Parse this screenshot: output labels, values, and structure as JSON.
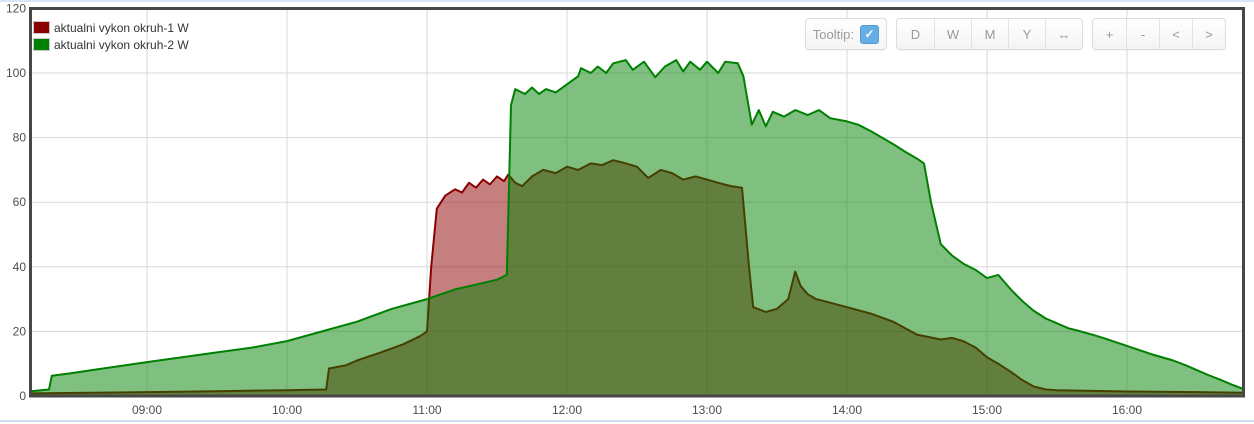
{
  "colors": {
    "series1": "#8b0000",
    "series1_fill": "rgba(139,0,0,0.5)",
    "series2": "#008000",
    "series2_fill": "rgba(0,128,0,0.5)",
    "grid": "#dadada",
    "axis_border": "#474747",
    "tick_text": "#4d4d4d",
    "checkbox_blue": "#64aee4"
  },
  "legend": {
    "items": [
      {
        "label": "aktualni vykon okruh-1 W",
        "color": "#8b0000"
      },
      {
        "label": "aktualni vykon okruh-2 W",
        "color": "#008000"
      }
    ]
  },
  "toolbar": {
    "tooltip_label": "Tooltip:",
    "tooltip_checked": true,
    "checkmark_glyph": "✓",
    "range_buttons": [
      "D",
      "W",
      "M",
      "Y",
      "↔"
    ],
    "zoom_buttons": [
      "+",
      "-",
      "<",
      ">"
    ]
  },
  "chart_data": {
    "type": "area",
    "title": "",
    "xlabel": "",
    "ylabel": "",
    "grid": true,
    "legend_position": "top-left",
    "x_axis": {
      "unit": "time",
      "start_hour": 8.17,
      "end_hour": 16.83,
      "tick_hours": [
        9,
        10,
        11,
        12,
        13,
        14,
        15,
        16
      ],
      "tick_labels": [
        "09:00",
        "10:00",
        "11:00",
        "12:00",
        "13:00",
        "14:00",
        "15:00",
        "16:00"
      ]
    },
    "y_axis": {
      "min": 0,
      "max": 120,
      "ticks": [
        0,
        20,
        40,
        60,
        80,
        100,
        120
      ]
    },
    "series": [
      {
        "name": "aktualni vykon okruh-1 W",
        "color": "#8b0000",
        "fill": "rgba(139,0,0,0.5)",
        "points": [
          [
            8.17,
            0.8
          ],
          [
            9.0,
            1.2
          ],
          [
            9.5,
            1.5
          ],
          [
            10.0,
            1.8
          ],
          [
            10.28,
            2.0
          ],
          [
            10.3,
            8.5
          ],
          [
            10.42,
            9.5
          ],
          [
            10.5,
            11
          ],
          [
            10.67,
            13.5
          ],
          [
            10.83,
            16
          ],
          [
            10.95,
            18.5
          ],
          [
            11.0,
            20
          ],
          [
            11.03,
            40
          ],
          [
            11.07,
            58
          ],
          [
            11.13,
            62
          ],
          [
            11.2,
            64
          ],
          [
            11.25,
            63
          ],
          [
            11.3,
            66
          ],
          [
            11.35,
            64.5
          ],
          [
            11.4,
            67
          ],
          [
            11.45,
            65.5
          ],
          [
            11.5,
            68
          ],
          [
            11.55,
            66.5
          ],
          [
            11.58,
            68.5
          ],
          [
            11.63,
            66
          ],
          [
            11.68,
            65
          ],
          [
            11.75,
            68
          ],
          [
            11.83,
            70
          ],
          [
            11.92,
            69
          ],
          [
            12.0,
            71
          ],
          [
            12.08,
            70
          ],
          [
            12.17,
            72
          ],
          [
            12.25,
            71.5
          ],
          [
            12.33,
            73
          ],
          [
            12.42,
            72
          ],
          [
            12.5,
            71
          ],
          [
            12.58,
            67.5
          ],
          [
            12.67,
            70
          ],
          [
            12.75,
            69
          ],
          [
            12.83,
            67
          ],
          [
            12.92,
            68
          ],
          [
            13.0,
            67
          ],
          [
            13.08,
            66
          ],
          [
            13.17,
            65
          ],
          [
            13.25,
            64.5
          ],
          [
            13.3,
            40
          ],
          [
            13.33,
            27.5
          ],
          [
            13.42,
            26
          ],
          [
            13.5,
            27
          ],
          [
            13.58,
            30
          ],
          [
            13.63,
            38.5
          ],
          [
            13.67,
            34
          ],
          [
            13.72,
            31.5
          ],
          [
            13.78,
            30
          ],
          [
            13.87,
            29
          ],
          [
            14.0,
            27.5
          ],
          [
            14.17,
            25.5
          ],
          [
            14.33,
            23
          ],
          [
            14.5,
            19
          ],
          [
            14.67,
            17.5
          ],
          [
            14.75,
            18
          ],
          [
            14.83,
            17
          ],
          [
            14.92,
            15
          ],
          [
            15.0,
            12
          ],
          [
            15.08,
            10
          ],
          [
            15.17,
            7.5
          ],
          [
            15.25,
            5
          ],
          [
            15.33,
            3
          ],
          [
            15.42,
            2
          ],
          [
            15.5,
            1.8
          ],
          [
            16.0,
            1.4
          ],
          [
            16.5,
            1.2
          ],
          [
            16.83,
            1
          ]
        ]
      },
      {
        "name": "aktualni vykon okruh-2 W",
        "color": "#008000",
        "fill": "rgba(0,128,0,0.5)",
        "points": [
          [
            8.17,
            1.5
          ],
          [
            8.3,
            2.0
          ],
          [
            8.32,
            6.3
          ],
          [
            8.45,
            7
          ],
          [
            8.6,
            8
          ],
          [
            9.0,
            10.5
          ],
          [
            9.25,
            12
          ],
          [
            9.5,
            13.5
          ],
          [
            9.75,
            15
          ],
          [
            10.0,
            17
          ],
          [
            10.25,
            20
          ],
          [
            10.5,
            23
          ],
          [
            10.75,
            27
          ],
          [
            11.0,
            30
          ],
          [
            11.2,
            33
          ],
          [
            11.35,
            34.5
          ],
          [
            11.5,
            36
          ],
          [
            11.57,
            37.5
          ],
          [
            11.6,
            90
          ],
          [
            11.63,
            95
          ],
          [
            11.7,
            93.5
          ],
          [
            11.75,
            95.5
          ],
          [
            11.8,
            93.5
          ],
          [
            11.85,
            95
          ],
          [
            11.92,
            94
          ],
          [
            12.0,
            96.5
          ],
          [
            12.08,
            99
          ],
          [
            12.1,
            101.5
          ],
          [
            12.17,
            100
          ],
          [
            12.22,
            102
          ],
          [
            12.28,
            100
          ],
          [
            12.33,
            103
          ],
          [
            12.42,
            104
          ],
          [
            12.47,
            101
          ],
          [
            12.55,
            103.5
          ],
          [
            12.63,
            98.7
          ],
          [
            12.7,
            102
          ],
          [
            12.78,
            104
          ],
          [
            12.83,
            100.5
          ],
          [
            12.88,
            103.5
          ],
          [
            12.95,
            101
          ],
          [
            13.0,
            103.5
          ],
          [
            13.08,
            100
          ],
          [
            13.13,
            103.5
          ],
          [
            13.22,
            103
          ],
          [
            13.26,
            99
          ],
          [
            13.32,
            84
          ],
          [
            13.37,
            88.5
          ],
          [
            13.42,
            83.5
          ],
          [
            13.47,
            88
          ],
          [
            13.55,
            86.5
          ],
          [
            13.63,
            88.5
          ],
          [
            13.72,
            87
          ],
          [
            13.8,
            88.5
          ],
          [
            13.88,
            86
          ],
          [
            14.0,
            85
          ],
          [
            14.08,
            84
          ],
          [
            14.17,
            82
          ],
          [
            14.25,
            80
          ],
          [
            14.33,
            78
          ],
          [
            14.42,
            75.5
          ],
          [
            14.5,
            73.5
          ],
          [
            14.55,
            72
          ],
          [
            14.6,
            60
          ],
          [
            14.67,
            47
          ],
          [
            14.75,
            43.5
          ],
          [
            14.83,
            41
          ],
          [
            14.92,
            39
          ],
          [
            15.0,
            36.5
          ],
          [
            15.08,
            37.5
          ],
          [
            15.17,
            33
          ],
          [
            15.25,
            29.5
          ],
          [
            15.33,
            26.5
          ],
          [
            15.42,
            24
          ],
          [
            15.5,
            22.5
          ],
          [
            15.58,
            21
          ],
          [
            15.67,
            20
          ],
          [
            15.75,
            19
          ],
          [
            15.83,
            18
          ],
          [
            16.0,
            15.5
          ],
          [
            16.17,
            13
          ],
          [
            16.33,
            11
          ],
          [
            16.42,
            9.5
          ],
          [
            16.5,
            8
          ],
          [
            16.58,
            6.5
          ],
          [
            16.67,
            5
          ],
          [
            16.75,
            3.5
          ],
          [
            16.83,
            2.2
          ]
        ]
      }
    ]
  }
}
